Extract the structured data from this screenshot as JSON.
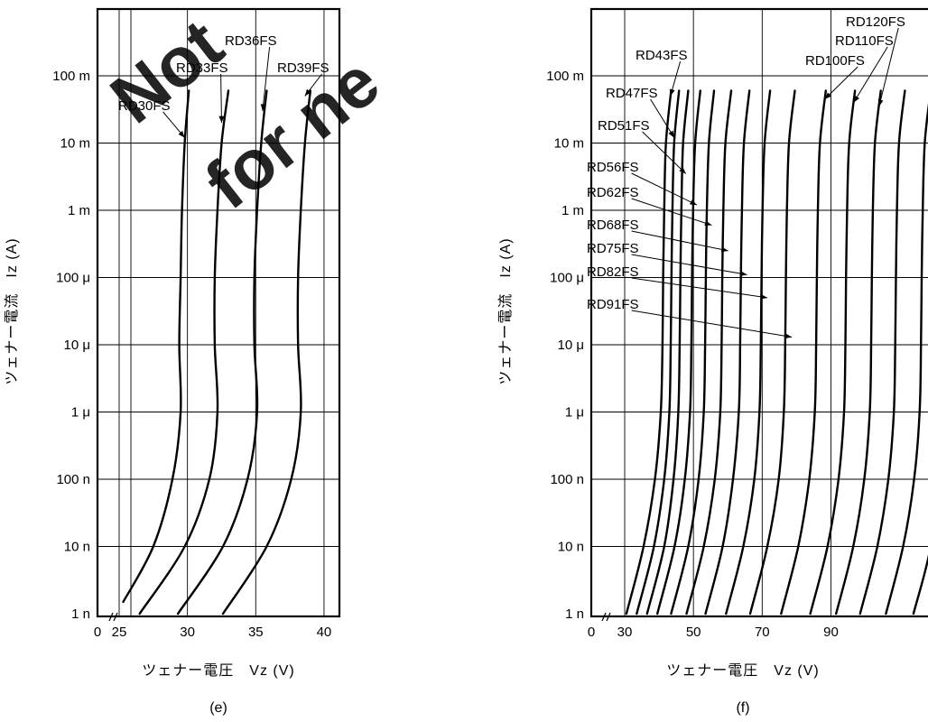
{
  "watermark": {
    "lines": [
      "Not",
      "for ne"
    ],
    "color": "#ff0000"
  },
  "chart_data": [
    {
      "type": "line",
      "caption": "(e)",
      "ylabel": "ツェナー電流　Iz (A)",
      "xlabel": "ツェナー電圧　Vz (V)",
      "x_scale": "linear",
      "y_scale": "log",
      "xlim": [
        25,
        40
      ],
      "ylim": [
        1e-09,
        0.06
      ],
      "x_axis_break": true,
      "x_ticks": [
        {
          "value": 0,
          "label": "0"
        },
        {
          "value": 25,
          "label": "25"
        },
        {
          "value": 30,
          "label": "30"
        },
        {
          "value": 35,
          "label": "35"
        },
        {
          "value": 40,
          "label": "40"
        }
      ],
      "y_ticks": [
        {
          "value": 1e-09,
          "label": "1 n"
        },
        {
          "value": 1e-08,
          "label": "10 n"
        },
        {
          "value": 1e-07,
          "label": "100 n"
        },
        {
          "value": 1e-06,
          "label": "1 μ"
        },
        {
          "value": 1e-05,
          "label": "10 μ"
        },
        {
          "value": 0.0001,
          "label": "100 μ"
        },
        {
          "value": 0.001,
          "label": "1 m"
        },
        {
          "value": 0.01,
          "label": "10 m"
        },
        {
          "value": 0.1,
          "label": "100 m"
        }
      ],
      "grid": true,
      "series": [
        {
          "name": "RD30FS",
          "points": [
            [
              25.3,
              1.5e-09
            ],
            [
              27.5,
              1e-08
            ],
            [
              28.9,
              1e-07
            ],
            [
              29.5,
              1e-06
            ],
            [
              29.4,
              1e-05
            ],
            [
              29.5,
              0.0001
            ],
            [
              29.6,
              0.001
            ],
            [
              29.8,
              0.01
            ],
            [
              30.1,
              0.06
            ]
          ]
        },
        {
          "name": "RD33FS",
          "points": [
            [
              26.5,
              1e-09
            ],
            [
              29.8,
              1e-08
            ],
            [
              31.6,
              1e-07
            ],
            [
              32.2,
              1e-06
            ],
            [
              32.0,
              1e-05
            ],
            [
              32.0,
              0.0001
            ],
            [
              32.2,
              0.001
            ],
            [
              32.5,
              0.01
            ],
            [
              33.0,
              0.06
            ]
          ]
        },
        {
          "name": "RD36FS",
          "points": [
            [
              29.3,
              1e-09
            ],
            [
              32.6,
              1e-08
            ],
            [
              34.4,
              1e-07
            ],
            [
              35.1,
              1e-06
            ],
            [
              34.9,
              1e-05
            ],
            [
              34.9,
              0.0001
            ],
            [
              35.1,
              0.001
            ],
            [
              35.4,
              0.01
            ],
            [
              35.8,
              0.06
            ]
          ]
        },
        {
          "name": "RD39FS",
          "points": [
            [
              32.6,
              1e-09
            ],
            [
              35.8,
              1e-08
            ],
            [
              37.6,
              1e-07
            ],
            [
              38.3,
              1e-06
            ],
            [
              38.1,
              1e-05
            ],
            [
              38.1,
              0.0001
            ],
            [
              38.3,
              0.001
            ],
            [
              38.6,
              0.01
            ],
            [
              39.0,
              0.06
            ]
          ]
        }
      ],
      "labels": [
        {
          "series": "RD30FS",
          "text": "RD30FS",
          "target": [
            29.8,
            0.012
          ]
        },
        {
          "series": "RD33FS",
          "text": "RD33FS",
          "target": [
            32.5,
            0.02
          ]
        },
        {
          "series": "RD36FS",
          "text": "RD36FS",
          "target": [
            35.5,
            0.03
          ]
        },
        {
          "series": "RD39FS",
          "text": "RD39FS",
          "target": [
            38.6,
            0.05
          ]
        }
      ]
    },
    {
      "type": "line",
      "caption": "(f)",
      "ylabel": "ツェナー電流　Iz (A)",
      "xlabel": "ツェナー電圧　Vz (V)",
      "x_scale": "linear",
      "y_scale": "log",
      "xlim": [
        25,
        120
      ],
      "ylim": [
        1e-09,
        0.06
      ],
      "x_axis_break": true,
      "x_ticks": [
        {
          "value": 0,
          "label": "0"
        },
        {
          "value": 30,
          "label": "30"
        },
        {
          "value": 50,
          "label": "50"
        },
        {
          "value": 70,
          "label": "70"
        },
        {
          "value": 90,
          "label": "90"
        }
      ],
      "y_ticks": [
        {
          "value": 1e-09,
          "label": "1 n"
        },
        {
          "value": 1e-08,
          "label": "10 n"
        },
        {
          "value": 1e-07,
          "label": "100 n"
        },
        {
          "value": 1e-06,
          "label": "1 μ"
        },
        {
          "value": 1e-05,
          "label": "10 μ"
        },
        {
          "value": 0.0001,
          "label": "100 μ"
        },
        {
          "value": 0.001,
          "label": "1 m"
        },
        {
          "value": 0.01,
          "label": "10 m"
        },
        {
          "value": 0.1,
          "label": "100 m"
        }
      ],
      "grid": true,
      "series": [
        {
          "name": "RD43FS",
          "points": [
            [
              30.5,
              1e-09
            ],
            [
              35.5,
              1e-08
            ],
            [
              38.8,
              1e-07
            ],
            [
              40.5,
              1e-06
            ],
            [
              41.0,
              1e-05
            ],
            [
              41.2,
              0.0001
            ],
            [
              41.5,
              0.001
            ],
            [
              42.0,
              0.01
            ],
            [
              43.5,
              0.06
            ]
          ]
        },
        {
          "name": "RD47FS",
          "points": [
            [
              33.5,
              1e-09
            ],
            [
              38.5,
              1e-08
            ],
            [
              41.5,
              1e-07
            ],
            [
              43.0,
              1e-06
            ],
            [
              43.4,
              1e-05
            ],
            [
              43.6,
              0.0001
            ],
            [
              43.9,
              0.001
            ],
            [
              44.4,
              0.01
            ],
            [
              45.8,
              0.06
            ]
          ]
        },
        {
          "name": "RD51FS",
          "points": [
            [
              36.5,
              1e-09
            ],
            [
              41.5,
              1e-08
            ],
            [
              44.2,
              1e-07
            ],
            [
              45.6,
              1e-06
            ],
            [
              46.0,
              1e-05
            ],
            [
              46.2,
              0.0001
            ],
            [
              46.5,
              0.001
            ],
            [
              47.0,
              0.01
            ],
            [
              48.5,
              0.06
            ]
          ]
        },
        {
          "name": "RD56FS",
          "points": [
            [
              39.5,
              1e-09
            ],
            [
              44.5,
              1e-08
            ],
            [
              47.5,
              1e-07
            ],
            [
              49.0,
              1e-06
            ],
            [
              49.4,
              1e-05
            ],
            [
              49.6,
              0.0001
            ],
            [
              49.9,
              0.001
            ],
            [
              50.5,
              0.01
            ],
            [
              52.0,
              0.06
            ]
          ]
        },
        {
          "name": "RD62FS",
          "points": [
            [
              43.5,
              1e-09
            ],
            [
              48.5,
              1e-08
            ],
            [
              51.5,
              1e-07
            ],
            [
              53.0,
              1e-06
            ],
            [
              53.4,
              1e-05
            ],
            [
              53.6,
              0.0001
            ],
            [
              53.9,
              0.001
            ],
            [
              54.5,
              0.01
            ],
            [
              56.0,
              0.06
            ]
          ]
        },
        {
          "name": "RD68FS",
          "points": [
            [
              48.0,
              1e-09
            ],
            [
              53.0,
              1e-08
            ],
            [
              56.2,
              1e-07
            ],
            [
              57.8,
              1e-06
            ],
            [
              58.2,
              1e-05
            ],
            [
              58.4,
              0.0001
            ],
            [
              58.7,
              0.001
            ],
            [
              59.3,
              0.01
            ],
            [
              61.0,
              0.06
            ]
          ]
        },
        {
          "name": "RD75FS",
          "points": [
            [
              53.5,
              1e-09
            ],
            [
              58.5,
              1e-08
            ],
            [
              61.5,
              1e-07
            ],
            [
              63.2,
              1e-06
            ],
            [
              63.6,
              1e-05
            ],
            [
              63.8,
              0.0001
            ],
            [
              64.1,
              0.001
            ],
            [
              64.7,
              0.01
            ],
            [
              66.3,
              0.06
            ]
          ]
        },
        {
          "name": "RD82FS",
          "points": [
            [
              59.5,
              1e-09
            ],
            [
              64.5,
              1e-08
            ],
            [
              67.7,
              1e-07
            ],
            [
              69.2,
              1e-06
            ],
            [
              69.6,
              1e-05
            ],
            [
              69.8,
              0.0001
            ],
            [
              70.1,
              0.001
            ],
            [
              70.7,
              0.01
            ],
            [
              72.3,
              0.06
            ]
          ]
        },
        {
          "name": "RD91FS",
          "points": [
            [
              66.5,
              1e-09
            ],
            [
              71.5,
              1e-08
            ],
            [
              74.8,
              1e-07
            ],
            [
              76.3,
              1e-06
            ],
            [
              76.7,
              1e-05
            ],
            [
              76.9,
              0.0001
            ],
            [
              77.2,
              0.001
            ],
            [
              77.8,
              0.01
            ],
            [
              79.5,
              0.06
            ]
          ]
        },
        {
          "name": "RD100FS",
          "points": [
            [
              75.5,
              1e-09
            ],
            [
              80.5,
              1e-08
            ],
            [
              83.7,
              1e-07
            ],
            [
              85.3,
              1e-06
            ],
            [
              85.7,
              1e-05
            ],
            [
              85.9,
              0.0001
            ],
            [
              86.2,
              0.001
            ],
            [
              86.8,
              0.01
            ],
            [
              88.5,
              0.06
            ]
          ]
        },
        {
          "name": "RD110FS",
          "points": [
            [
              84.0,
              1e-09
            ],
            [
              89.0,
              1e-08
            ],
            [
              92.2,
              1e-07
            ],
            [
              93.8,
              1e-06
            ],
            [
              94.2,
              1e-05
            ],
            [
              94.4,
              0.0001
            ],
            [
              94.7,
              0.001
            ],
            [
              95.3,
              0.01
            ],
            [
              97.0,
              0.06
            ]
          ]
        },
        {
          "name": "RD120FS",
          "points": [
            [
              91.5,
              1e-09
            ],
            [
              96.5,
              1e-08
            ],
            [
              99.7,
              1e-07
            ],
            [
              101.3,
              1e-06
            ],
            [
              101.7,
              1e-05
            ],
            [
              101.9,
              0.0001
            ],
            [
              102.2,
              0.001
            ],
            [
              102.8,
              0.01
            ],
            [
              104.5,
              0.06
            ]
          ]
        },
        {
          "name": "",
          "points": [
            [
              98.5,
              1e-09
            ],
            [
              103.5,
              1e-08
            ],
            [
              106.7,
              1e-07
            ],
            [
              108.3,
              1e-06
            ],
            [
              108.7,
              1e-05
            ],
            [
              108.9,
              0.0001
            ],
            [
              109.2,
              0.001
            ],
            [
              109.8,
              0.01
            ],
            [
              111.5,
              0.06
            ]
          ]
        },
        {
          "name": "",
          "points": [
            [
              106.0,
              1e-09
            ],
            [
              111.0,
              1e-08
            ],
            [
              114.2,
              1e-07
            ],
            [
              115.8,
              1e-06
            ],
            [
              116.2,
              1e-05
            ],
            [
              116.4,
              0.0001
            ],
            [
              116.7,
              0.001
            ],
            [
              117.3,
              0.01
            ],
            [
              119.0,
              0.06
            ]
          ]
        },
        {
          "name": "",
          "points": [
            [
              114.0,
              1e-09
            ],
            [
              119.0,
              1e-08
            ],
            [
              120.5,
              1e-07
            ],
            [
              121.0,
              1e-06
            ],
            [
              121.2,
              1e-05
            ],
            [
              121.3,
              0.0001
            ],
            [
              121.4,
              0.001
            ],
            [
              121.5,
              0.01
            ],
            [
              121.7,
              0.06
            ]
          ]
        }
      ],
      "labels": [
        {
          "series": "RD43FS",
          "text": "RD43FS",
          "target": [
            43.3,
            0.05
          ]
        },
        {
          "series": "RD47FS",
          "text": "RD47FS",
          "target": [
            44.4,
            0.012
          ]
        },
        {
          "series": "RD51FS",
          "text": "RD51FS",
          "target": [
            47.8,
            0.0035
          ]
        },
        {
          "series": "RD56FS",
          "text": "RD56FS",
          "target": [
            51.0,
            0.0012
          ]
        },
        {
          "series": "RD62FS",
          "text": "RD62FS",
          "target": [
            55.3,
            0.0006
          ]
        },
        {
          "series": "RD68FS",
          "text": "RD68FS",
          "target": [
            60.1,
            0.00025
          ]
        },
        {
          "series": "RD75FS",
          "text": "RD75FS",
          "target": [
            65.6,
            0.00011
          ]
        },
        {
          "series": "RD82FS",
          "text": "RD82FS",
          "target": [
            71.5,
            5e-05
          ]
        },
        {
          "series": "RD91FS",
          "text": "RD91FS",
          "target": [
            78.6,
            1.3e-05
          ]
        },
        {
          "series": "RD100FS",
          "text": "RD100FS",
          "target": [
            88.2,
            0.045
          ]
        },
        {
          "series": "RD110FS",
          "text": "RD110FS",
          "target": [
            96.6,
            0.04
          ]
        },
        {
          "series": "RD120FS",
          "text": "RD120FS",
          "target": [
            104.0,
            0.035
          ]
        }
      ]
    }
  ]
}
